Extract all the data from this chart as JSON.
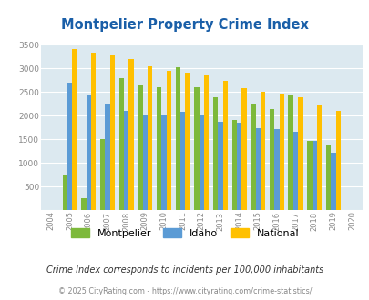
{
  "title": "Montpelier Property Crime Index",
  "years": [
    2004,
    2005,
    2006,
    2007,
    2008,
    2009,
    2010,
    2011,
    2012,
    2013,
    2014,
    2015,
    2016,
    2017,
    2018,
    2019,
    2020
  ],
  "montpelier": [
    0,
    750,
    250,
    1500,
    2800,
    2670,
    2600,
    3020,
    2600,
    2400,
    1900,
    2250,
    2150,
    2430,
    1460,
    1380,
    0
  ],
  "idaho": [
    0,
    2700,
    2430,
    2250,
    2100,
    2000,
    2000,
    2080,
    2000,
    1870,
    1860,
    1730,
    1720,
    1650,
    1470,
    1210,
    0
  ],
  "national": [
    0,
    3420,
    3330,
    3270,
    3210,
    3050,
    2960,
    2920,
    2860,
    2730,
    2590,
    2500,
    2470,
    2390,
    2210,
    2110,
    0
  ],
  "montpelier_color": "#7db93b",
  "idaho_color": "#5b9bd5",
  "national_color": "#ffc000",
  "background_color": "#dce9f0",
  "ylim": [
    0,
    3500
  ],
  "yticks": [
    0,
    500,
    1000,
    1500,
    2000,
    2500,
    3000,
    3500
  ],
  "bar_width": 0.26,
  "subtitle": "Crime Index corresponds to incidents per 100,000 inhabitants",
  "footer": "© 2025 CityRating.com - https://www.cityrating.com/crime-statistics/",
  "legend_labels": [
    "Montpelier",
    "Idaho",
    "National"
  ],
  "title_color": "#1a5fa8",
  "subtitle_color": "#333333",
  "footer_color": "#888888",
  "tick_color": "#888888"
}
